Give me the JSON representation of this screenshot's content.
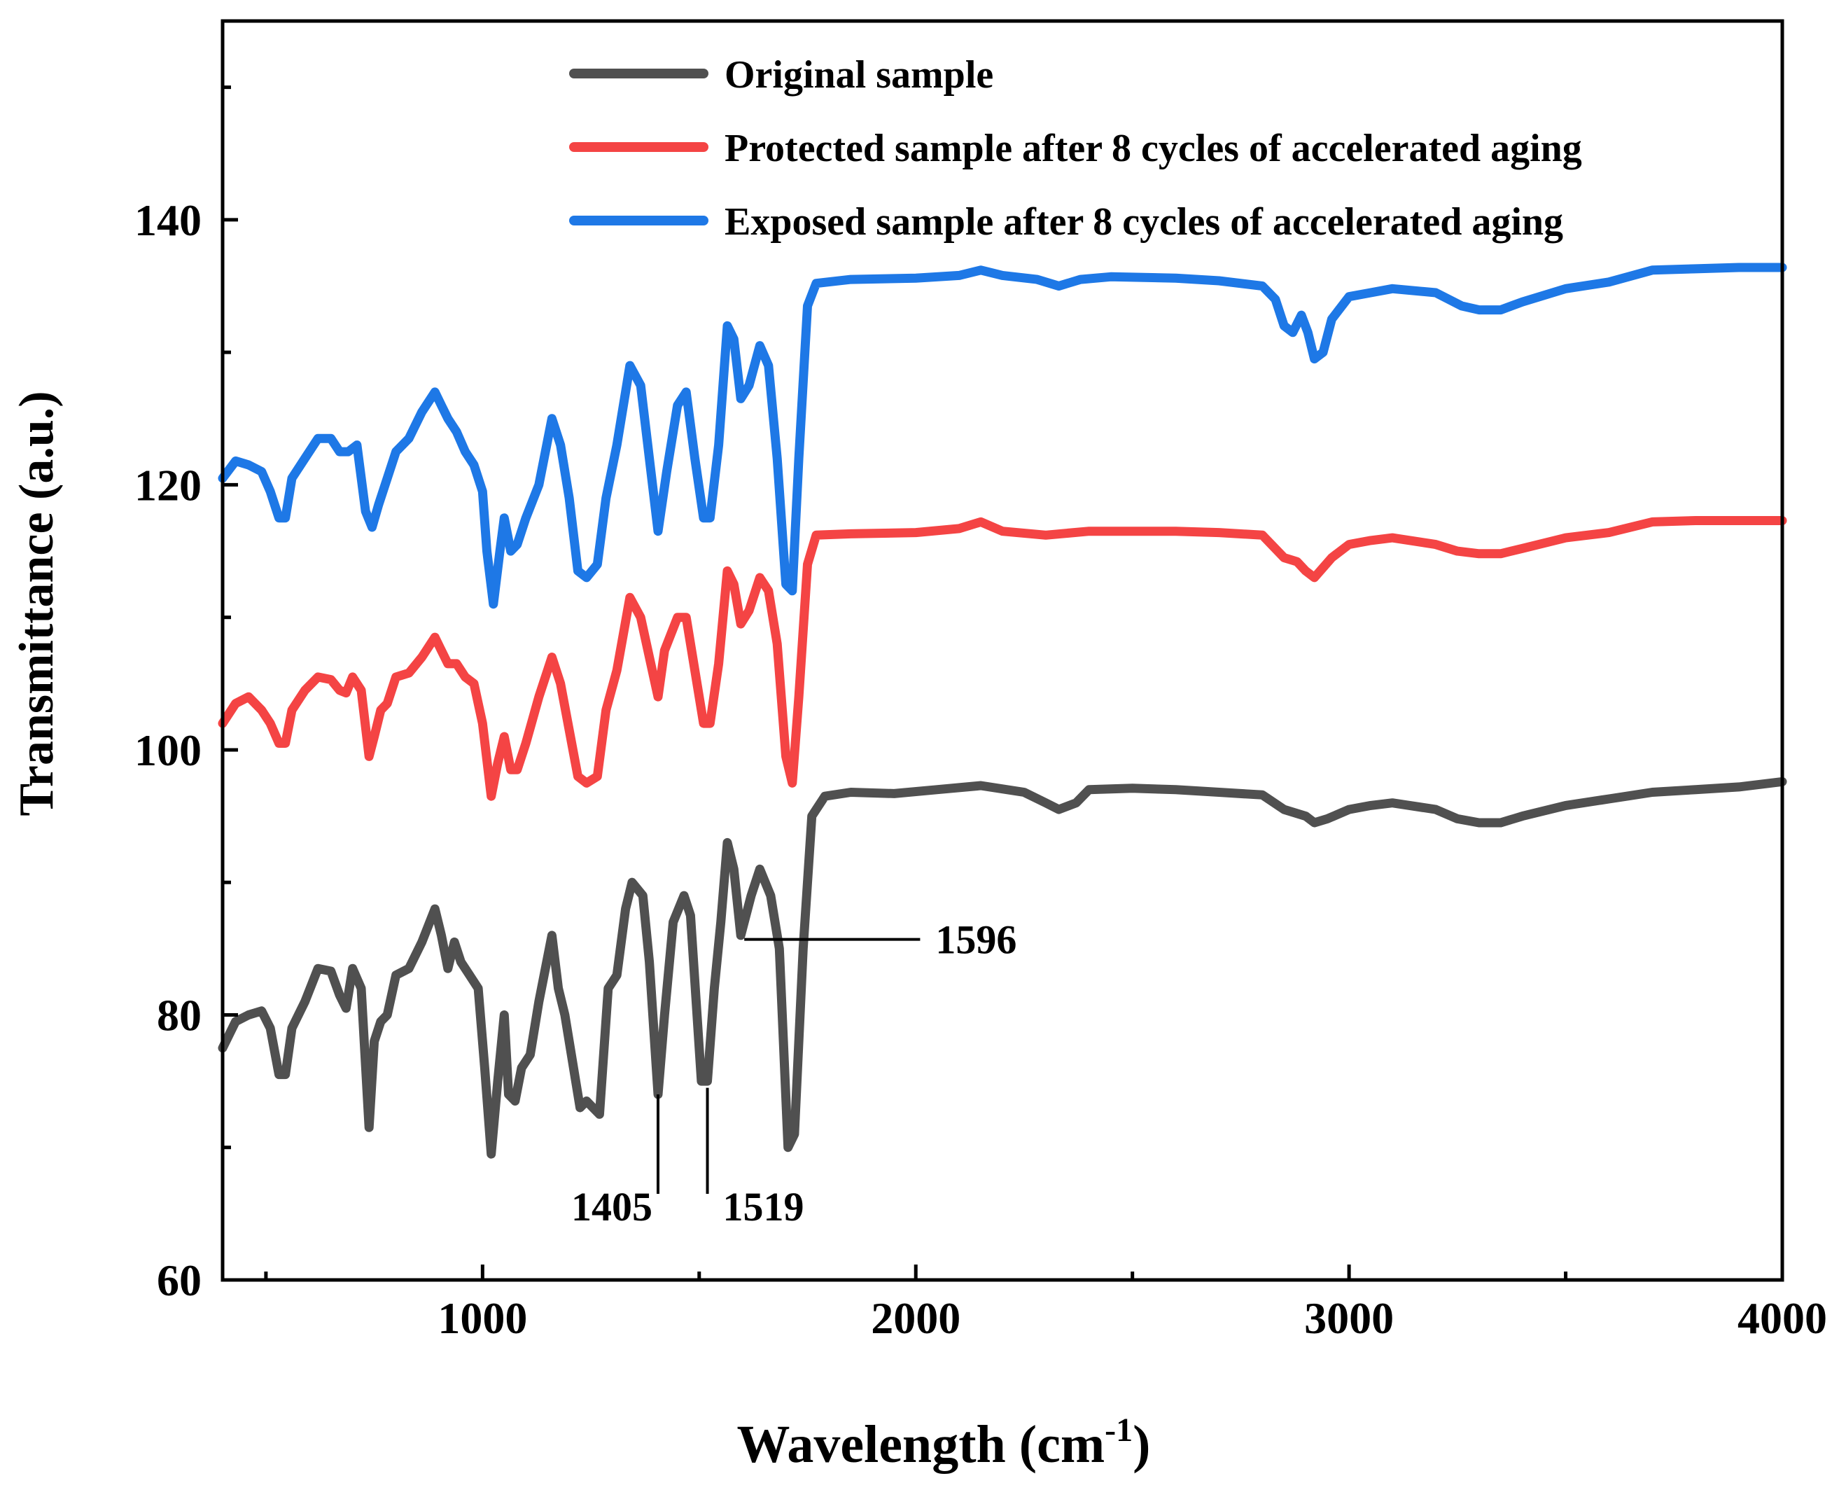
{
  "chart_data": {
    "type": "line",
    "title": "",
    "xlabel": "Wavelength (cm",
    "xlabel_superscript": "-1",
    "xlabel_close": ")",
    "ylabel": "Transmittance (a.u.)",
    "xlim": [
      400,
      4000
    ],
    "ylim": [
      60,
      155
    ],
    "x_ticks": [
      {
        "value": 1000,
        "label": "1000"
      },
      {
        "value": 2000,
        "label": "2000"
      },
      {
        "value": 3000,
        "label": "3000"
      },
      {
        "value": 4000,
        "label": "4000"
      }
    ],
    "x_minor_ticks": [
      500,
      1500,
      2500,
      3500
    ],
    "y_ticks": [
      {
        "value": 60,
        "label": "60"
      },
      {
        "value": 80,
        "label": "80"
      },
      {
        "value": 100,
        "label": "100"
      },
      {
        "value": 120,
        "label": "120"
      },
      {
        "value": 140,
        "label": "140"
      }
    ],
    "y_minor_ticks": [
      70,
      90,
      110,
      130,
      150
    ],
    "grid": false,
    "legend_position": "top-right",
    "series": [
      {
        "name": "Original sample",
        "color": "#505050",
        "points": [
          [
            400,
            77.5
          ],
          [
            430,
            79.5
          ],
          [
            460,
            80
          ],
          [
            490,
            80.3
          ],
          [
            510,
            79
          ],
          [
            530,
            75.5
          ],
          [
            545,
            75.5
          ],
          [
            560,
            79
          ],
          [
            590,
            81
          ],
          [
            620,
            83.5
          ],
          [
            650,
            83.3
          ],
          [
            670,
            81.5
          ],
          [
            685,
            80.5
          ],
          [
            700,
            83.5
          ],
          [
            720,
            82
          ],
          [
            738,
            71.5
          ],
          [
            750,
            78
          ],
          [
            765,
            79.5
          ],
          [
            780,
            80
          ],
          [
            800,
            83
          ],
          [
            830,
            83.5
          ],
          [
            860,
            85.5
          ],
          [
            890,
            88
          ],
          [
            905,
            86
          ],
          [
            920,
            83.5
          ],
          [
            935,
            85.5
          ],
          [
            950,
            84
          ],
          [
            970,
            83
          ],
          [
            990,
            82
          ],
          [
            1005,
            76
          ],
          [
            1020,
            69.5
          ],
          [
            1035,
            75
          ],
          [
            1050,
            80
          ],
          [
            1060,
            74
          ],
          [
            1075,
            73.5
          ],
          [
            1090,
            76
          ],
          [
            1110,
            77
          ],
          [
            1130,
            81
          ],
          [
            1160,
            86
          ],
          [
            1175,
            82
          ],
          [
            1190,
            80
          ],
          [
            1210,
            76
          ],
          [
            1225,
            73
          ],
          [
            1240,
            73.5
          ],
          [
            1255,
            73
          ],
          [
            1270,
            72.5
          ],
          [
            1290,
            82
          ],
          [
            1310,
            83
          ],
          [
            1330,
            88
          ],
          [
            1345,
            90
          ],
          [
            1370,
            89
          ],
          [
            1385,
            84
          ],
          [
            1405,
            74
          ],
          [
            1420,
            80
          ],
          [
            1440,
            87
          ],
          [
            1465,
            89
          ],
          [
            1480,
            87.5
          ],
          [
            1505,
            75
          ],
          [
            1519,
            75
          ],
          [
            1535,
            82
          ],
          [
            1550,
            87
          ],
          [
            1565,
            93
          ],
          [
            1580,
            91
          ],
          [
            1596,
            86
          ],
          [
            1620,
            89
          ],
          [
            1640,
            91
          ],
          [
            1665,
            89
          ],
          [
            1685,
            85
          ],
          [
            1705,
            70
          ],
          [
            1720,
            71
          ],
          [
            1740,
            85
          ],
          [
            1760,
            95
          ],
          [
            1790,
            96.5
          ],
          [
            1850,
            96.8
          ],
          [
            1950,
            96.7
          ],
          [
            2050,
            97
          ],
          [
            2150,
            97.3
          ],
          [
            2250,
            96.8
          ],
          [
            2300,
            96
          ],
          [
            2330,
            95.5
          ],
          [
            2370,
            96
          ],
          [
            2400,
            97
          ],
          [
            2500,
            97.1
          ],
          [
            2600,
            97
          ],
          [
            2700,
            96.8
          ],
          [
            2800,
            96.6
          ],
          [
            2850,
            95.5
          ],
          [
            2900,
            95
          ],
          [
            2920,
            94.5
          ],
          [
            2950,
            94.8
          ],
          [
            3000,
            95.5
          ],
          [
            3050,
            95.8
          ],
          [
            3100,
            96
          ],
          [
            3200,
            95.5
          ],
          [
            3250,
            94.8
          ],
          [
            3300,
            94.5
          ],
          [
            3350,
            94.5
          ],
          [
            3400,
            95
          ],
          [
            3500,
            95.8
          ],
          [
            3600,
            96.3
          ],
          [
            3700,
            96.8
          ],
          [
            3800,
            97
          ],
          [
            3900,
            97.2
          ],
          [
            4000,
            97.6
          ]
        ]
      },
      {
        "name": "Protected sample after 8 cycles of accelerated aging",
        "color": "#f44444",
        "points": [
          [
            400,
            102
          ],
          [
            430,
            103.5
          ],
          [
            460,
            104
          ],
          [
            490,
            103
          ],
          [
            510,
            102
          ],
          [
            530,
            100.5
          ],
          [
            545,
            100.5
          ],
          [
            560,
            103
          ],
          [
            590,
            104.5
          ],
          [
            620,
            105.5
          ],
          [
            650,
            105.3
          ],
          [
            670,
            104.5
          ],
          [
            685,
            104.3
          ],
          [
            700,
            105.5
          ],
          [
            720,
            104.5
          ],
          [
            738,
            99.5
          ],
          [
            750,
            101
          ],
          [
            765,
            103
          ],
          [
            780,
            103.5
          ],
          [
            800,
            105.5
          ],
          [
            830,
            105.8
          ],
          [
            860,
            107
          ],
          [
            890,
            108.5
          ],
          [
            905,
            107.5
          ],
          [
            920,
            106.5
          ],
          [
            940,
            106.5
          ],
          [
            960,
            105.5
          ],
          [
            980,
            105
          ],
          [
            1000,
            102
          ],
          [
            1020,
            96.5
          ],
          [
            1035,
            99
          ],
          [
            1050,
            101
          ],
          [
            1065,
            98.5
          ],
          [
            1080,
            98.5
          ],
          [
            1100,
            100.5
          ],
          [
            1130,
            104
          ],
          [
            1160,
            107
          ],
          [
            1180,
            105
          ],
          [
            1200,
            101.5
          ],
          [
            1220,
            98
          ],
          [
            1240,
            97.5
          ],
          [
            1265,
            98
          ],
          [
            1285,
            103
          ],
          [
            1310,
            106
          ],
          [
            1340,
            111.5
          ],
          [
            1365,
            110
          ],
          [
            1385,
            107
          ],
          [
            1405,
            104
          ],
          [
            1420,
            107.5
          ],
          [
            1450,
            110
          ],
          [
            1470,
            110
          ],
          [
            1490,
            106
          ],
          [
            1510,
            102
          ],
          [
            1525,
            102
          ],
          [
            1545,
            106.5
          ],
          [
            1565,
            113.5
          ],
          [
            1580,
            112.5
          ],
          [
            1596,
            109.5
          ],
          [
            1615,
            110.5
          ],
          [
            1640,
            113
          ],
          [
            1660,
            112
          ],
          [
            1680,
            108
          ],
          [
            1700,
            99.5
          ],
          [
            1715,
            97.5
          ],
          [
            1730,
            104
          ],
          [
            1750,
            114
          ],
          [
            1770,
            116.2
          ],
          [
            1850,
            116.3
          ],
          [
            2000,
            116.4
          ],
          [
            2100,
            116.7
          ],
          [
            2150,
            117.2
          ],
          [
            2200,
            116.5
          ],
          [
            2300,
            116.2
          ],
          [
            2400,
            116.5
          ],
          [
            2500,
            116.5
          ],
          [
            2600,
            116.5
          ],
          [
            2700,
            116.4
          ],
          [
            2800,
            116.2
          ],
          [
            2850,
            114.5
          ],
          [
            2880,
            114.2
          ],
          [
            2900,
            113.5
          ],
          [
            2920,
            113
          ],
          [
            2960,
            114.5
          ],
          [
            3000,
            115.5
          ],
          [
            3050,
            115.8
          ],
          [
            3100,
            116
          ],
          [
            3200,
            115.5
          ],
          [
            3250,
            115
          ],
          [
            3300,
            114.8
          ],
          [
            3350,
            114.8
          ],
          [
            3400,
            115.2
          ],
          [
            3500,
            116
          ],
          [
            3600,
            116.4
          ],
          [
            3700,
            117.2
          ],
          [
            3800,
            117.3
          ],
          [
            3900,
            117.3
          ],
          [
            4000,
            117.3
          ]
        ]
      },
      {
        "name": "Exposed sample after 8 cycles of accelerated aging",
        "color": "#1e78e6",
        "points": [
          [
            400,
            120.5
          ],
          [
            430,
            121.8
          ],
          [
            460,
            121.5
          ],
          [
            490,
            121
          ],
          [
            510,
            119.5
          ],
          [
            530,
            117.5
          ],
          [
            545,
            117.5
          ],
          [
            560,
            120.5
          ],
          [
            590,
            122
          ],
          [
            620,
            123.5
          ],
          [
            650,
            123.5
          ],
          [
            670,
            122.5
          ],
          [
            690,
            122.5
          ],
          [
            710,
            123
          ],
          [
            730,
            118
          ],
          [
            745,
            116.8
          ],
          [
            760,
            118.5
          ],
          [
            780,
            120.5
          ],
          [
            800,
            122.5
          ],
          [
            830,
            123.5
          ],
          [
            860,
            125.5
          ],
          [
            890,
            127
          ],
          [
            905,
            126
          ],
          [
            920,
            125
          ],
          [
            940,
            124
          ],
          [
            960,
            122.5
          ],
          [
            980,
            121.5
          ],
          [
            1000,
            119.5
          ],
          [
            1010,
            115
          ],
          [
            1025,
            111
          ],
          [
            1040,
            115
          ],
          [
            1050,
            117.5
          ],
          [
            1065,
            115
          ],
          [
            1080,
            115.5
          ],
          [
            1100,
            117.5
          ],
          [
            1130,
            120
          ],
          [
            1160,
            125
          ],
          [
            1180,
            123
          ],
          [
            1200,
            119
          ],
          [
            1220,
            113.5
          ],
          [
            1240,
            113
          ],
          [
            1265,
            114
          ],
          [
            1285,
            119
          ],
          [
            1310,
            123
          ],
          [
            1340,
            129
          ],
          [
            1365,
            127.5
          ],
          [
            1385,
            122
          ],
          [
            1405,
            116.5
          ],
          [
            1425,
            121
          ],
          [
            1450,
            126
          ],
          [
            1470,
            127
          ],
          [
            1490,
            122
          ],
          [
            1510,
            117.5
          ],
          [
            1525,
            117.5
          ],
          [
            1545,
            123
          ],
          [
            1565,
            132
          ],
          [
            1580,
            131
          ],
          [
            1596,
            126.5
          ],
          [
            1615,
            127.5
          ],
          [
            1640,
            130.5
          ],
          [
            1660,
            129
          ],
          [
            1680,
            122
          ],
          [
            1700,
            112.5
          ],
          [
            1715,
            112
          ],
          [
            1730,
            122
          ],
          [
            1750,
            133.5
          ],
          [
            1770,
            135.2
          ],
          [
            1850,
            135.5
          ],
          [
            2000,
            135.6
          ],
          [
            2100,
            135.8
          ],
          [
            2150,
            136.2
          ],
          [
            2200,
            135.8
          ],
          [
            2280,
            135.5
          ],
          [
            2330,
            135
          ],
          [
            2380,
            135.5
          ],
          [
            2450,
            135.7
          ],
          [
            2600,
            135.6
          ],
          [
            2700,
            135.4
          ],
          [
            2800,
            135
          ],
          [
            2830,
            134
          ],
          [
            2850,
            132
          ],
          [
            2870,
            131.5
          ],
          [
            2890,
            132.8
          ],
          [
            2905,
            131.5
          ],
          [
            2920,
            129.5
          ],
          [
            2940,
            130
          ],
          [
            2960,
            132.5
          ],
          [
            3000,
            134.2
          ],
          [
            3050,
            134.5
          ],
          [
            3100,
            134.8
          ],
          [
            3200,
            134.5
          ],
          [
            3260,
            133.5
          ],
          [
            3300,
            133.2
          ],
          [
            3350,
            133.2
          ],
          [
            3400,
            133.8
          ],
          [
            3500,
            134.8
          ],
          [
            3600,
            135.3
          ],
          [
            3700,
            136.2
          ],
          [
            3800,
            136.3
          ],
          [
            3900,
            136.4
          ],
          [
            4000,
            136.4
          ]
        ]
      }
    ],
    "annotations": [
      {
        "label": "1405",
        "x": 1405,
        "y_line_top": 74,
        "y_line_bottom": 66.5,
        "text_y": 64.5,
        "side": "left"
      },
      {
        "label": "1519",
        "x": 1519,
        "y_line_top": 74.5,
        "y_line_bottom": 66.5,
        "text_y": 64.5,
        "side": "right"
      },
      {
        "label": "1596",
        "x": 1596,
        "y": 85.7,
        "x_line_end": 2010,
        "side": "right"
      }
    ]
  }
}
